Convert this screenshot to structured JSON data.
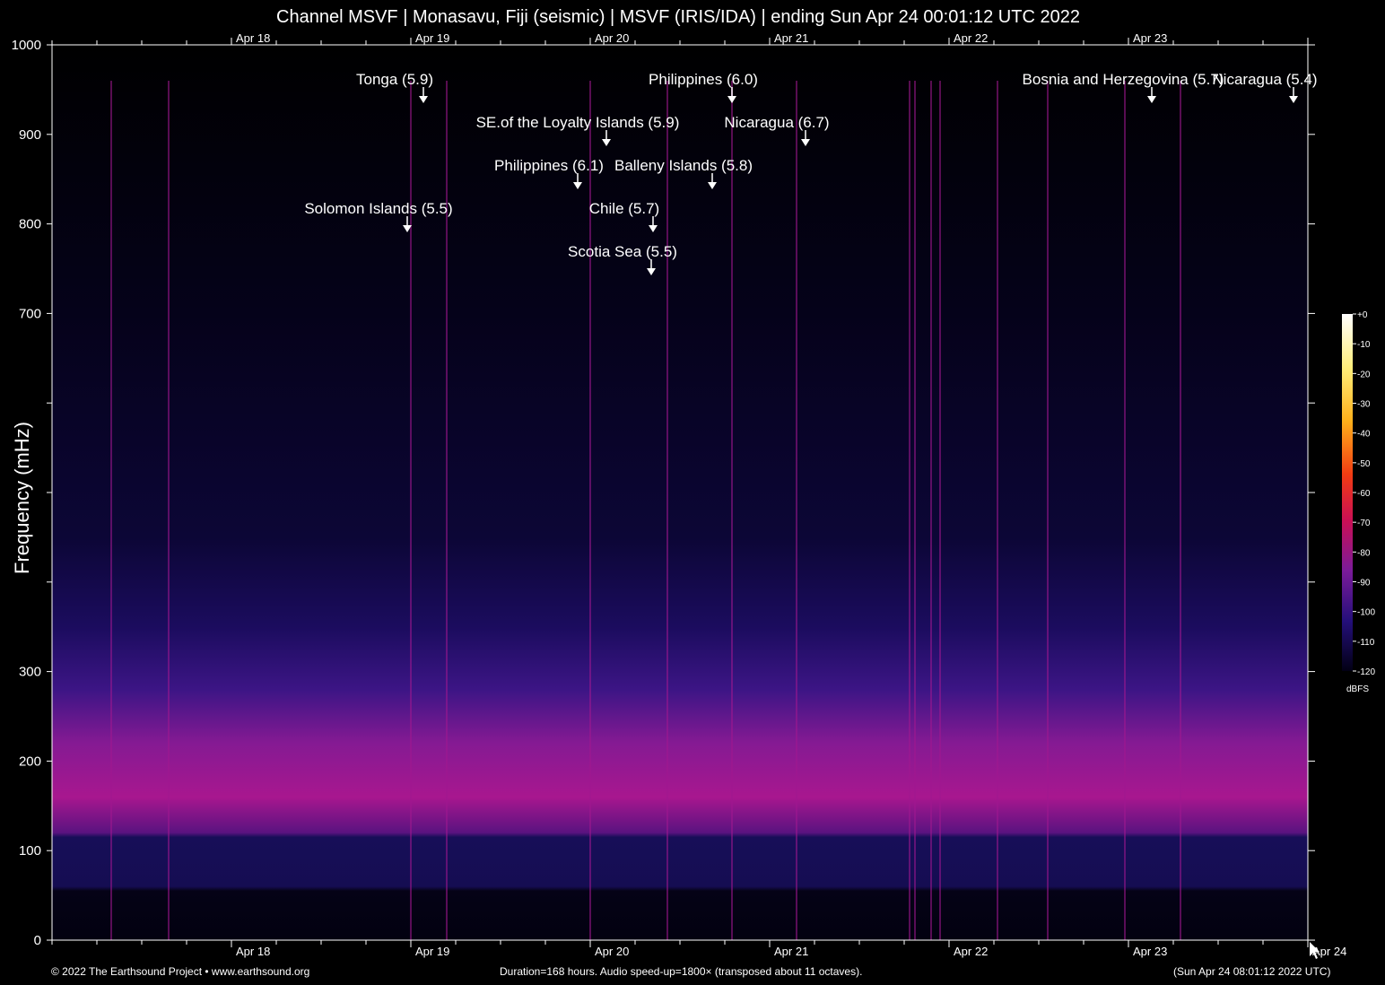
{
  "title": "Channel MSVF | Monasavu, Fiji (seismic) | MSVF (IRIS/IDA) | ending Sun Apr 24 00:01:12 UTC 2022",
  "footer": {
    "left": "© 2022 The Earthsound Project • www.earthsound.org",
    "center": "Duration=168 hours. Audio speed-up=1800× (transposed about 11 octaves).",
    "right": "(Sun Apr 24 08:01:12 2022 UTC)"
  },
  "colors": {
    "background": "#000000",
    "text": "#ffffff",
    "spectrogram_band": "#b0178f",
    "spectrogram_noise": "#23106e"
  },
  "chart_data": {
    "type": "heatmap",
    "title": "Channel MSVF | Monasavu, Fiji (seismic) | MSVF (IRIS/IDA) | ending Sun Apr 24 00:01:12 UTC 2022",
    "ylabel": "Frequency (mHz)",
    "ylim": [
      0,
      1000
    ],
    "y_ticks": [
      0,
      100,
      200,
      300,
      400,
      500,
      600,
      700,
      800,
      900,
      1000
    ],
    "y_tick_labels": [
      "0",
      "100",
      "200",
      "300",
      "",
      "",
      "",
      "700",
      "800",
      "900",
      "1000"
    ],
    "x_duration_hours": 168,
    "x_date_labels": [
      {
        "label": "Apr 18",
        "day": 1
      },
      {
        "label": "Apr 19",
        "day": 2
      },
      {
        "label": "Apr 20",
        "day": 3
      },
      {
        "label": "Apr 21",
        "day": 4
      },
      {
        "label": "Apr 22",
        "day": 5
      },
      {
        "label": "Apr 23",
        "day": 6
      },
      {
        "label": "Apr 24",
        "day": 7
      }
    ],
    "colorbar": {
      "unit": "dBFS",
      "range": [
        -120,
        0
      ],
      "ticks": [
        "+0",
        "-10",
        "-20",
        "-30",
        "-40",
        "-50",
        "-60",
        "-70",
        "-80",
        "-90",
        "-100",
        "-110",
        "-120"
      ]
    },
    "events": [
      {
        "label": "Tonga (5.9)",
        "day": 2.07
      },
      {
        "label": "SE.of the Loyalty Islands (5.9)",
        "day": 3.09
      },
      {
        "label": "Philippines (6.1)",
        "day": 2.93
      },
      {
        "label": "Solomon Islands (5.5)",
        "day": 1.98
      },
      {
        "label": "Philippines (6.0)",
        "day": 3.79
      },
      {
        "label": "Nicaragua (6.7)",
        "day": 4.2
      },
      {
        "label": "Balleny Islands (5.8)",
        "day": 3.68
      },
      {
        "label": "Chile (5.7)",
        "day": 3.35
      },
      {
        "label": "Scotia Sea (5.5)",
        "day": 3.34
      },
      {
        "label": "Bosnia and Herzegovina (5.7)",
        "day": 6.13
      },
      {
        "label": "Nicaragua (5.4)",
        "day": 6.92
      }
    ],
    "vertical_lines_days": [
      0.33,
      0.65,
      2.0,
      2.2,
      3.0,
      3.43,
      3.79,
      4.15,
      4.78,
      4.81,
      4.9,
      4.95,
      5.27,
      5.55,
      5.98,
      6.29
    ]
  }
}
